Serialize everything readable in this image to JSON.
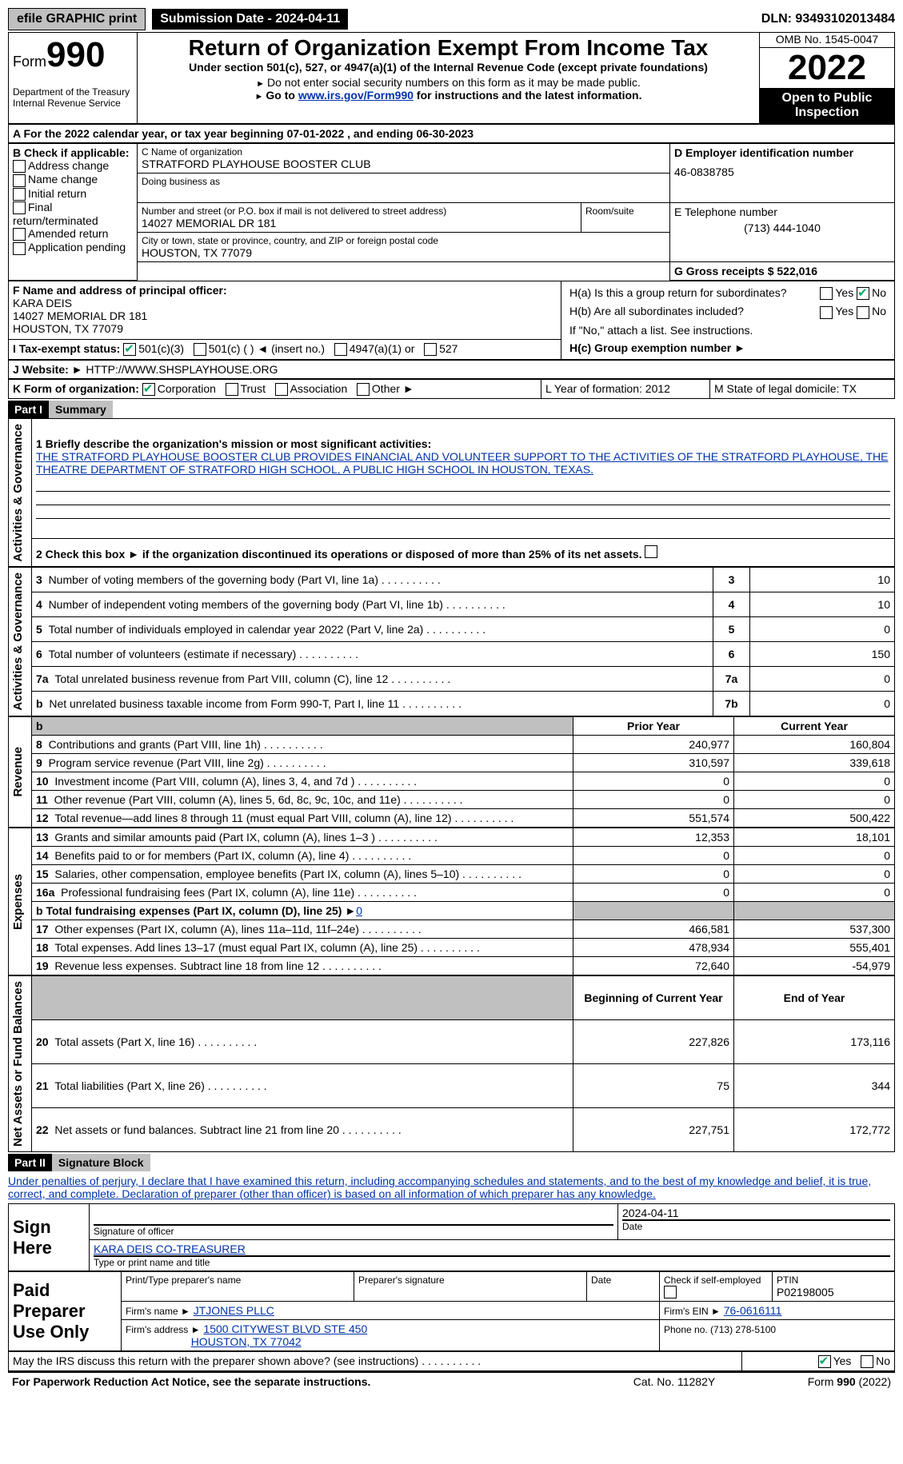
{
  "colors": {
    "link_blue": "#0033aa",
    "check_green": "#00aa66",
    "grey": "#c0c0c0",
    "black": "#000000",
    "white": "#ffffff"
  },
  "top": {
    "efile_label": "efile GRAPHIC print",
    "submission_date_label": "Submission Date - 2024-04-11",
    "dln_label": "DLN: 93493102013484"
  },
  "header": {
    "form_prefix": "Form",
    "form_num": "990",
    "dept": "Department of the Treasury\nInternal Revenue Service",
    "title": "Return of Organization Exempt From Income Tax",
    "subtitle": "Under section 501(c), 527, or 4947(a)(1) of the Internal Revenue Code (except private foundations)",
    "note1": "Do not enter social security numbers on this form as it may be made public.",
    "note2_pre": "Go to ",
    "note2_link": "www.irs.gov/Form990",
    "note2_post": " for instructions and the latest information.",
    "omb": "OMB No. 1545-0047",
    "year": "2022",
    "open": "Open to Public Inspection"
  },
  "sectionA": {
    "period": "For the 2022 calendar year, or tax year beginning 07-01-2022   , and ending 06-30-2023"
  },
  "sectionB": {
    "label": "B Check if applicable:",
    "options": [
      "Address change",
      "Name change",
      "Initial return",
      "Final return/terminated",
      "Amended return",
      "Application pending"
    ]
  },
  "sectionC": {
    "name_label": "C Name of organization",
    "name": "STRATFORD PLAYHOUSE BOOSTER CLUB",
    "dba_label": "Doing business as",
    "street_label": "Number and street (or P.O. box if mail is not delivered to street address)",
    "room_label": "Room/suite",
    "street": "14027 MEMORIAL DR 181",
    "city_label": "City or town, state or province, country, and ZIP or foreign postal code",
    "city": "HOUSTON, TX  77079"
  },
  "sectionD": {
    "label": "D Employer identification number",
    "value": "46-0838785"
  },
  "sectionE": {
    "label": "E Telephone number",
    "value": "(713) 444-1040"
  },
  "sectionG": {
    "label": "G Gross receipts $ 522,016"
  },
  "sectionF": {
    "label": "F  Name and address of principal officer:",
    "name": "KARA DEIS",
    "street": "14027 MEMORIAL DR 181",
    "city": "HOUSTON, TX  77079"
  },
  "sectionH": {
    "a_label": "H(a)  Is this a group return for subordinates?",
    "b_label": "H(b)  Are all subordinates included?",
    "b_note": "If \"No,\" attach a list. See instructions.",
    "c_label": "H(c)  Group exemption number ►",
    "yes": "Yes",
    "no": "No"
  },
  "sectionI": {
    "label": "I   Tax-exempt status:",
    "opts": [
      "501(c)(3)",
      "501(c) (  ) ◄ (insert no.)",
      "4947(a)(1) or",
      "527"
    ]
  },
  "sectionJ": {
    "label": "J  Website: ►",
    "value": "HTTP://WWW.SHSPLAYHOUSE.ORG"
  },
  "sectionK": {
    "label": "K Form of organization:",
    "opts": [
      "Corporation",
      "Trust",
      "Association",
      "Other ►"
    ]
  },
  "sectionL": {
    "label": "L Year of formation: 2012"
  },
  "sectionM": {
    "label": "M State of legal domicile: TX"
  },
  "part1": {
    "hdr": "Part I",
    "title": "Summary",
    "line1_label": "1  Briefly describe the organization's mission or most significant activities:",
    "line1_text": "THE STRATFORD PLAYHOUSE BOOSTER CLUB PROVIDES FINANCIAL AND VOLUNTEER SUPPORT TO THE ACTIVITIES OF THE STRATFORD PLAYHOUSE, THE THEATRE DEPARTMENT OF STRATFORD HIGH SCHOOL, A PUBLIC HIGH SCHOOL IN HOUSTON, TEXAS.",
    "line2": "2   Check this box ►       if the organization discontinued its operations or disposed of more than 25% of its net assets.",
    "vlabels": {
      "gov": "Activities & Governance",
      "rev": "Revenue",
      "exp": "Expenses",
      "net": "Net Assets or Fund Balances"
    },
    "gov_rows": [
      {
        "n": "3",
        "label": "Number of voting members of the governing body (Part VI, line 1a)",
        "box": "3",
        "val": "10"
      },
      {
        "n": "4",
        "label": "Number of independent voting members of the governing body (Part VI, line 1b)",
        "box": "4",
        "val": "10"
      },
      {
        "n": "5",
        "label": "Total number of individuals employed in calendar year 2022 (Part V, line 2a)",
        "box": "5",
        "val": "0"
      },
      {
        "n": "6",
        "label": "Total number of volunteers (estimate if necessary)",
        "box": "6",
        "val": "150"
      },
      {
        "n": "7a",
        "label": "Total unrelated business revenue from Part VIII, column (C), line 12",
        "box": "7a",
        "val": "0"
      },
      {
        "n": "b",
        "label": "Net unrelated business taxable income from Form 990-T, Part I, line 11",
        "box": "7b",
        "val": "0"
      }
    ],
    "col_hdr_prior": "Prior Year",
    "col_hdr_current": "Current Year",
    "rev_rows": [
      {
        "n": "8",
        "label": "Contributions and grants (Part VIII, line 1h)",
        "prior": "240,977",
        "cur": "160,804"
      },
      {
        "n": "9",
        "label": "Program service revenue (Part VIII, line 2g)",
        "prior": "310,597",
        "cur": "339,618"
      },
      {
        "n": "10",
        "label": "Investment income (Part VIII, column (A), lines 3, 4, and 7d )",
        "prior": "0",
        "cur": "0"
      },
      {
        "n": "11",
        "label": "Other revenue (Part VIII, column (A), lines 5, 6d, 8c, 9c, 10c, and 11e)",
        "prior": "0",
        "cur": "0"
      },
      {
        "n": "12",
        "label": "Total revenue—add lines 8 through 11 (must equal Part VIII, column (A), line 12)",
        "prior": "551,574",
        "cur": "500,422"
      }
    ],
    "exp_rows": [
      {
        "n": "13",
        "label": "Grants and similar amounts paid (Part IX, column (A), lines 1–3 )",
        "prior": "12,353",
        "cur": "18,101"
      },
      {
        "n": "14",
        "label": "Benefits paid to or for members (Part IX, column (A), line 4)",
        "prior": "0",
        "cur": "0"
      },
      {
        "n": "15",
        "label": "Salaries, other compensation, employee benefits (Part IX, column (A), lines 5–10)",
        "prior": "0",
        "cur": "0"
      },
      {
        "n": "16a",
        "label": "Professional fundraising fees (Part IX, column (A), line 11e)",
        "prior": "0",
        "cur": "0"
      }
    ],
    "exp_16b_label": "b  Total fundraising expenses (Part IX, column (D), line 25) ►",
    "exp_16b_val": "0",
    "exp_rows2": [
      {
        "n": "17",
        "label": "Other expenses (Part IX, column (A), lines 11a–11d, 11f–24e)",
        "prior": "466,581",
        "cur": "537,300"
      },
      {
        "n": "18",
        "label": "Total expenses. Add lines 13–17 (must equal Part IX, column (A), line 25)",
        "prior": "478,934",
        "cur": "555,401"
      },
      {
        "n": "19",
        "label": "Revenue less expenses. Subtract line 18 from line 12",
        "prior": "72,640",
        "cur": "-54,979"
      }
    ],
    "col_hdr_begin": "Beginning of Current Year",
    "col_hdr_end": "End of Year",
    "net_rows": [
      {
        "n": "20",
        "label": "Total assets (Part X, line 16)",
        "prior": "227,826",
        "cur": "173,116"
      },
      {
        "n": "21",
        "label": "Total liabilities (Part X, line 26)",
        "prior": "75",
        "cur": "344"
      },
      {
        "n": "22",
        "label": "Net assets or fund balances. Subtract line 21 from line 20",
        "prior": "227,751",
        "cur": "172,772"
      }
    ]
  },
  "part2": {
    "hdr": "Part II",
    "title": "Signature Block",
    "decl": "Under penalties of perjury, I declare that I have examined this return, including accompanying schedules and statements, and to the best of my knowledge and belief, it is true, correct, and complete. Declaration of preparer (other than officer) is based on all information of which preparer has any knowledge.",
    "sign_here": "Sign Here",
    "sig_officer": "Signature of officer",
    "sig_date": "2024-04-11",
    "sig_date_lbl": "Date",
    "officer_name": "KARA DEIS  CO-TREASURER",
    "officer_name_lbl": "Type or print name and title",
    "paid_prep": "Paid Preparer Use Only",
    "prep_name_lbl": "Print/Type preparer's name",
    "prep_sig_lbl": "Preparer's signature",
    "prep_date_lbl": "Date",
    "prep_check_lbl": "Check         if self-employed",
    "ptin_lbl": "PTIN",
    "ptin": "P02198005",
    "firm_name_lbl": "Firm's name    ►",
    "firm_name": "JTJONES PLLC",
    "firm_ein_lbl": "Firm's EIN ►",
    "firm_ein": "76-0616111",
    "firm_addr_lbl": "Firm's address ►",
    "firm_addr1": "1500 CITYWEST BLVD STE 450",
    "firm_addr2": "HOUSTON, TX  77042",
    "firm_phone_lbl": "Phone no. (713) 278-5100",
    "irs_discuss": "May the IRS discuss this return with the preparer shown above? (see instructions)",
    "yes": "Yes",
    "no": "No"
  },
  "footer": {
    "left": "For Paperwork Reduction Act Notice, see the separate instructions.",
    "mid": "Cat. No. 11282Y",
    "right": "Form 990 (2022)"
  }
}
